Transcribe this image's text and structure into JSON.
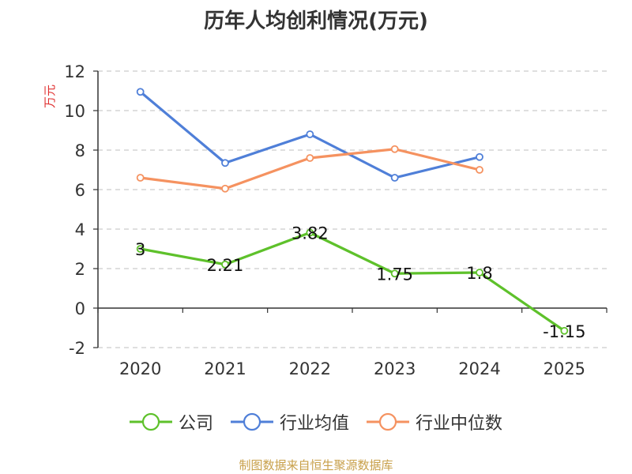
{
  "chart_data": {
    "type": "line",
    "title": "历年人均创利情况(万元)",
    "ylabel": "万元",
    "xlabel": "",
    "categories": [
      "2020",
      "2021",
      "2022",
      "2023",
      "2024",
      "2025"
    ],
    "ylim": [
      -2,
      12
    ],
    "yticks": [
      "-2",
      "0",
      "2",
      "4",
      "6",
      "8",
      "10",
      "12"
    ],
    "grid": true,
    "legend_position": "bottom",
    "series": [
      {
        "name": "公司",
        "color": "#5ec12b",
        "values": [
          3,
          2.21,
          3.82,
          1.75,
          1.8,
          -1.15
        ],
        "labels": [
          "3",
          "2.21",
          "3.82",
          "1.75",
          "1.8",
          "-1.15"
        ]
      },
      {
        "name": "行业均值",
        "color": "#4f7fd8",
        "values": [
          10.95,
          7.35,
          8.8,
          6.6,
          7.65,
          null
        ],
        "labels": []
      },
      {
        "name": "行业中位数",
        "color": "#f59260",
        "values": [
          6.6,
          6.05,
          7.6,
          8.05,
          7.0,
          null
        ],
        "labels": []
      }
    ]
  },
  "footer": "制图数据来自恒生聚源数据库"
}
